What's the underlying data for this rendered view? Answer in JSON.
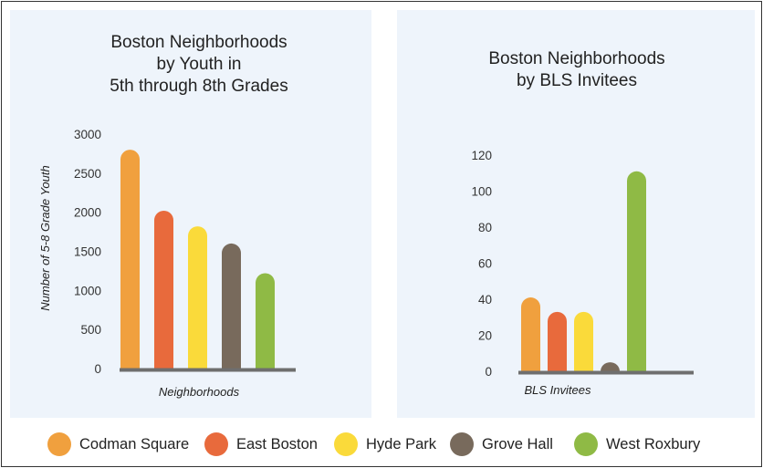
{
  "chart_data": [
    {
      "type": "bar",
      "title": [
        "Boston Neighborhoods",
        "by Youth in",
        "5th through 8th Grades"
      ],
      "xlabel": "Neighborhoods",
      "ylabel": "Number of 5-8 Grade Youth",
      "ylim": [
        0,
        3000
      ],
      "yticks": [
        0,
        500,
        1000,
        1500,
        2000,
        2500,
        3000
      ],
      "categories": [
        "Codman Square",
        "East Boston",
        "Hyde Park",
        "Grove Hall",
        "West Roxbury"
      ],
      "values": [
        2800,
        2020,
        1820,
        1600,
        1220
      ],
      "grid": false
    },
    {
      "type": "bar",
      "title": [
        "Boston Neighborhoods",
        "by BLS Invitees"
      ],
      "xlabel": "BLS Invitees",
      "ylabel": "",
      "ylim": [
        0,
        120
      ],
      "yticks": [
        0,
        20,
        40,
        60,
        80,
        100,
        120
      ],
      "categories": [
        "Codman Square",
        "East Boston",
        "Hyde Park",
        "Grove Hall",
        "West Roxbury"
      ],
      "values": [
        41,
        33,
        33,
        5,
        111
      ],
      "grid": false
    }
  ],
  "legend": {
    "placement": "bottom",
    "items": [
      {
        "label": "Codman Square",
        "color": "#f0a03e"
      },
      {
        "label": "East Boston",
        "color": "#e86a3c"
      },
      {
        "label": "Hyde Park",
        "color": "#fada3a"
      },
      {
        "label": "Grove Hall",
        "color": "#786a5c"
      },
      {
        "label": "West Roxbury",
        "color": "#8fba45"
      }
    ]
  },
  "colors": {
    "panel_background": "#eef4fb",
    "baseline": "#6e6e6e"
  }
}
